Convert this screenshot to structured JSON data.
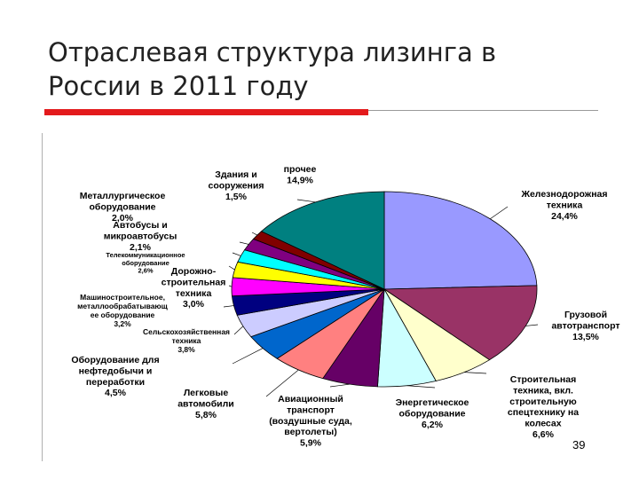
{
  "slide": {
    "title_line1": "Отраслевая структура лизинга в",
    "title_line2": "России в 2011 году",
    "page_number": "39",
    "accent_color": "#e31a1c"
  },
  "chart_data": {
    "type": "pie",
    "slices": [
      {
        "label": [
          "Железнодорожная",
          "техника"
        ],
        "value": 24.4,
        "value_text": "24,4%",
        "color": "#9999ff"
      },
      {
        "label": [
          "Грузовой",
          "автотранспорт"
        ],
        "value": 13.5,
        "value_text": "13,5%",
        "color": "#993366"
      },
      {
        "label": [
          "Строительная",
          "техника, вкл.",
          "строительную",
          "спецтехнику на",
          "колесах"
        ],
        "value": 6.6,
        "value_text": "6,6%",
        "color": "#ffffcc"
      },
      {
        "label": [
          "Энергетическое",
          "оборудование"
        ],
        "value": 6.2,
        "value_text": "6,2%",
        "color": "#ccffff"
      },
      {
        "label": [
          "Авиационный",
          "транспорт",
          "(воздушные суда,",
          "вертолеты)"
        ],
        "value": 5.9,
        "value_text": "5,9%",
        "color": "#660066"
      },
      {
        "label": [
          "Легковые",
          "автомобили"
        ],
        "value": 5.8,
        "value_text": "5,8%",
        "color": "#ff8080"
      },
      {
        "label": [
          "Оборудование для",
          "нефтедобычи и",
          "переработки"
        ],
        "value": 4.5,
        "value_text": "4,5%",
        "color": "#0066cc"
      },
      {
        "label": [
          "Сельскохозяйственная",
          "техника"
        ],
        "value": 3.8,
        "value_text": "3,8%",
        "color": "#ccccff"
      },
      {
        "label": [
          "Машиностроительное,",
          "металлообрабатывающ",
          "ее оборудование"
        ],
        "value": 3.2,
        "value_text": "3,2%",
        "color": "#000080"
      },
      {
        "label": [
          "Дорожно-",
          "строительная",
          "техника"
        ],
        "value": 3.0,
        "value_text": "3,0%",
        "color": "#ff00ff"
      },
      {
        "label": [
          "Телекоммуникационное",
          "оборудование"
        ],
        "value": 2.6,
        "value_text": "2,6%",
        "color": "#ffff00"
      },
      {
        "label": [
          "Автобусы и",
          "микроавтобусы"
        ],
        "value": 2.1,
        "value_text": "2,1%",
        "color": "#00ffff"
      },
      {
        "label": [
          "Металлургическое",
          "оборудование"
        ],
        "value": 2.0,
        "value_text": "2,0%",
        "color": "#800080"
      },
      {
        "label": [
          "Здания и",
          "сооружения"
        ],
        "value": 1.5,
        "value_text": "1,5%",
        "color": "#800000"
      },
      {
        "label": [
          "прочее"
        ],
        "value": 14.9,
        "value_text": "14,9%",
        "color": "#008080"
      }
    ]
  }
}
